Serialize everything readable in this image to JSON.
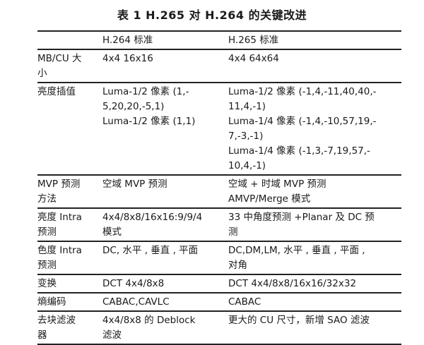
{
  "title": "表 1  H.265 对 H.264 的关键改进",
  "header": [
    "",
    "H.264 标准",
    "H.265 标准"
  ],
  "rows": [
    {
      "label": [
        "MB/CU 大",
        "小"
      ],
      "h264": [
        "4x4 16x16"
      ],
      "h265": [
        "4x4 64x64"
      ]
    },
    {
      "label": [
        "亮度插值"
      ],
      "h264": [
        "Luma-1/2 像素 (1,-",
        "5,20,20,-5,1)",
        "Luma-1/2 像素 (1,1)"
      ],
      "h265": [
        "Luma-1/2 像素 (-1,4,-11,40,40,-",
        "11,4,-1)",
        "Luma-1/4 像素 (-1,4,-10,57,19,-",
        "7,-3,-1)",
        "Luma-1/4 像素 (-1,3,-7,19,57,-",
        "10,4,-1)"
      ]
    },
    {
      "label": [
        "MVP 预测",
        "方法"
      ],
      "h264": [
        "空域 MVP 预测"
      ],
      "h265": [
        "空域 + 时域 MVP 预测",
        "AMVP/Merge 模式"
      ]
    },
    {
      "label": [
        "亮度 Intra",
        "预测"
      ],
      "h264": [
        "4x4/8x8/16x16:9/9/4",
        "模式"
      ],
      "h265": [
        "33 中角度预测 +Planar 及 DC 预",
        "测"
      ]
    },
    {
      "label": [
        "色度 Intra",
        "预测"
      ],
      "h264": [
        "DC, 水平 , 垂直 , 平面"
      ],
      "h265": [
        "DC,DM,LM, 水平 , 垂直 , 平面 ,",
        "对角"
      ]
    },
    {
      "label": [
        "变换"
      ],
      "h264": [
        "DCT 4x4/8x8"
      ],
      "h265": [
        "DCT 4x4/8x8/16x16/32x32"
      ]
    },
    {
      "label": [
        "熵编码"
      ],
      "h264": [
        "CABAC,CAVLC"
      ],
      "h265": [
        "CABAC"
      ]
    },
    {
      "label": [
        "去块滤波",
        "器"
      ],
      "h264": [
        "4x4/8x8 的 Deblock",
        "滤波"
      ],
      "h265": [
        "更大的 CU 尺寸，新增 SAO 滤波"
      ]
    }
  ]
}
